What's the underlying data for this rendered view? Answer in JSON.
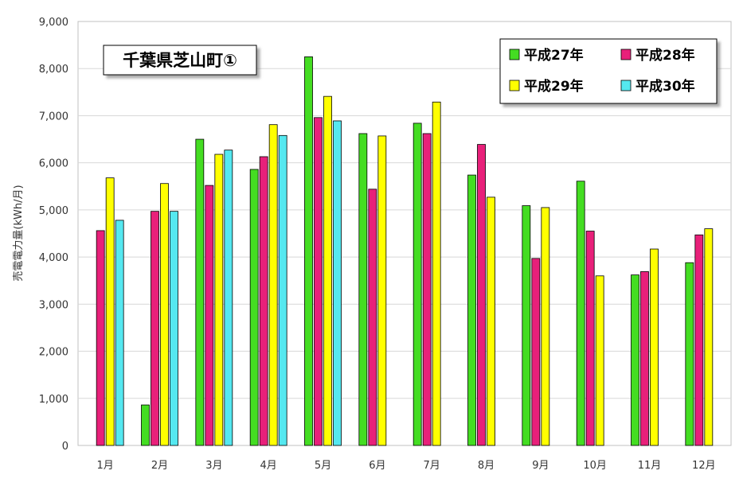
{
  "chart_data": {
    "type": "bar",
    "title": "千葉県芝山町①",
    "ylabel": "売電電力量(kWh/月)",
    "xlabel": "",
    "ylim": [
      0,
      9000
    ],
    "yticks": [
      "0",
      "1,000",
      "2,000",
      "3,000",
      "4,000",
      "5,000",
      "6,000",
      "7,000",
      "8,000",
      "9,000"
    ],
    "grid": true,
    "legend_position": "top-right",
    "categories": [
      "1月",
      "2月",
      "3月",
      "4月",
      "5月",
      "6月",
      "7月",
      "8月",
      "9月",
      "10月",
      "11月",
      "12月"
    ],
    "series": [
      {
        "name": "平成27年",
        "color": "#44dd22",
        "values": [
          null,
          860,
          6500,
          5860,
          8250,
          6620,
          6840,
          5740,
          5090,
          5610,
          3620,
          3880
        ]
      },
      {
        "name": "平成28年",
        "color": "#e8207a",
        "values": [
          4560,
          4970,
          5520,
          6130,
          6960,
          5440,
          6620,
          6390,
          3970,
          4550,
          3690,
          4470
        ]
      },
      {
        "name": "平成29年",
        "color": "#ffff00",
        "values": [
          5680,
          5560,
          6180,
          6810,
          7410,
          6570,
          7290,
          5270,
          5050,
          3600,
          4170,
          4600
        ]
      },
      {
        "name": "平成30年",
        "color": "#55e8f0",
        "values": [
          4780,
          4970,
          6270,
          6580,
          6890,
          null,
          null,
          null,
          null,
          null,
          null,
          null
        ]
      }
    ]
  }
}
